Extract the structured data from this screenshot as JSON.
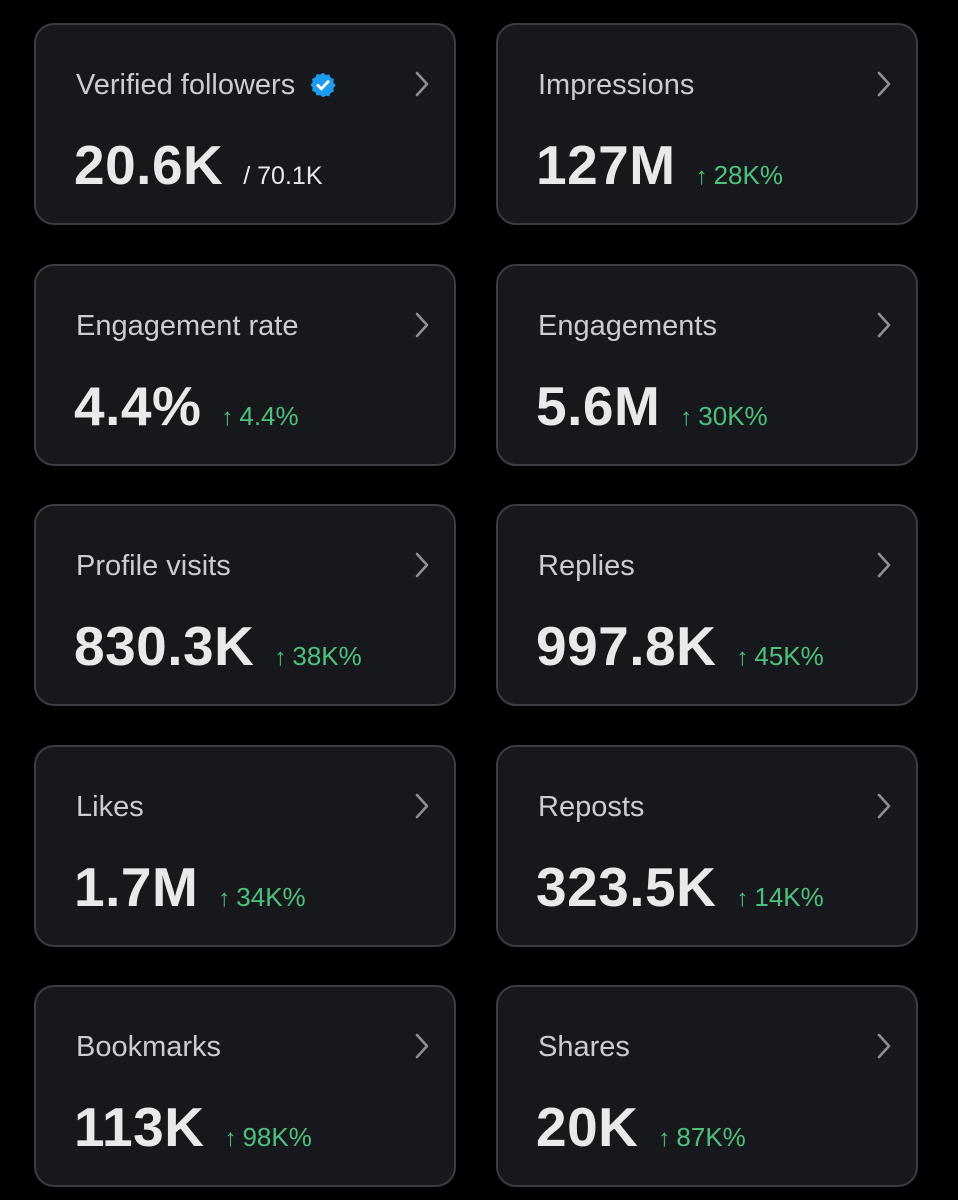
{
  "colors": {
    "background": "#000000",
    "card_bg": "#16181c",
    "card_border": "#3a3d42",
    "label": "#c9cdd2",
    "value": "#e7e9ea",
    "positive": "#4ec07d",
    "verified_badge": "#1d9bf0"
  },
  "icons": {
    "chevron": "chevron-right-icon",
    "verified": "verified-badge-icon",
    "trend": "arrow-up-icon"
  },
  "cards": [
    {
      "label": "Verified followers",
      "value": "20.6K",
      "sub": "/ 70.1K",
      "delta": "",
      "verified": true
    },
    {
      "label": "Impressions",
      "value": "127M",
      "sub": "",
      "delta": "28K%",
      "arrow": "↑"
    },
    {
      "label": "Engagement rate",
      "value": "4.4%",
      "sub": "",
      "delta": "4.4%",
      "arrow": "↑"
    },
    {
      "label": "Engagements",
      "value": "5.6M",
      "sub": "",
      "delta": "30K%",
      "arrow": "↑"
    },
    {
      "label": "Profile visits",
      "value": "830.3K",
      "sub": "",
      "delta": "38K%",
      "arrow": "↑"
    },
    {
      "label": "Replies",
      "value": "997.8K",
      "sub": "",
      "delta": "45K%",
      "arrow": "↑"
    },
    {
      "label": "Likes",
      "value": "1.7M",
      "sub": "",
      "delta": "34K%",
      "arrow": "↑"
    },
    {
      "label": "Reposts",
      "value": "323.5K",
      "sub": "",
      "delta": "14K%",
      "arrow": "↑"
    },
    {
      "label": "Bookmarks",
      "value": "113K",
      "sub": "",
      "delta": "98K%",
      "arrow": "↑"
    },
    {
      "label": "Shares",
      "value": "20K",
      "sub": "",
      "delta": "87K%",
      "arrow": "↑"
    }
  ]
}
